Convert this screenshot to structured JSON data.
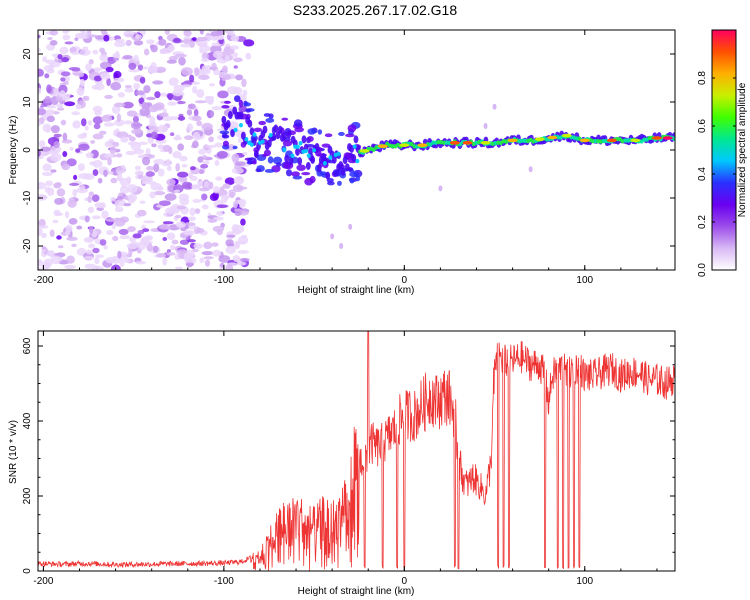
{
  "title": "S233.2025.267.17.02.G18",
  "chart_data": [
    {
      "type": "heatmap",
      "name": "spectrogram",
      "xlabel": "Height of straight line (km)",
      "ylabel": "Frequency (Hz)",
      "xlim": [
        -203,
        150
      ],
      "ylim": [
        -25,
        25
      ],
      "xticks": [
        -200,
        -100,
        0,
        100
      ],
      "yticks": [
        20,
        10,
        0,
        -10,
        -20
      ],
      "noise_region_x": [
        -203,
        -88
      ],
      "ridge": {
        "x": [
          -100,
          -90,
          -80,
          -70,
          -60,
          -50,
          -40,
          -30,
          -20,
          -10,
          0,
          10,
          20,
          30,
          40,
          50,
          60,
          70,
          80,
          90,
          100,
          110,
          120,
          130,
          140,
          150
        ],
        "f": [
          6,
          5,
          1,
          2,
          0,
          -1,
          -3,
          -1,
          0,
          1,
          1,
          1,
          1.5,
          1.5,
          1.5,
          1.5,
          2,
          2,
          2.5,
          3,
          2,
          2,
          2,
          2,
          2.5,
          2.5
        ]
      },
      "colorbar": {
        "label": "Normalized spectral amplitude",
        "range": [
          0,
          1
        ],
        "ticks": [
          "0.0",
          "0.2",
          "0.4",
          "0.6",
          "0.8"
        ],
        "tick_values": [
          0.0,
          0.2,
          0.4,
          0.6,
          0.8
        ],
        "colors": [
          "#ffffff",
          "#d9b8f5",
          "#9b4dea",
          "#6a00f0",
          "#2a30ff",
          "#00c8ff",
          "#00e890",
          "#40ff00",
          "#c8f000",
          "#ffb000",
          "#ff5000",
          "#ff0060"
        ]
      }
    },
    {
      "type": "line",
      "name": "snr",
      "xlabel": "Height of straight line (km)",
      "ylabel": "SNR (10 * v/v)",
      "xlim": [
        -203,
        150
      ],
      "ylim": [
        0,
        640
      ],
      "xticks": [
        -200,
        -100,
        0,
        100
      ],
      "yticks": [
        0,
        200,
        400,
        600
      ],
      "color": "#ee3333",
      "x": [
        -203,
        -190,
        -175,
        -160,
        -145,
        -130,
        -115,
        -100,
        -90,
        -85,
        -80,
        -75,
        -70,
        -65,
        -60,
        -55,
        -50,
        -45,
        -40,
        -35,
        -30,
        -27,
        -25,
        -22,
        -20,
        -18,
        -15,
        -12,
        -10,
        -7,
        -5,
        -3,
        0,
        3,
        5,
        8,
        10,
        13,
        15,
        18,
        20,
        23,
        25,
        28,
        30,
        33,
        35,
        38,
        40,
        43,
        45,
        48,
        50,
        52,
        55,
        58,
        60,
        65,
        70,
        75,
        78,
        80,
        82,
        85,
        88,
        90,
        92,
        95,
        97,
        100,
        105,
        110,
        115,
        120,
        125,
        130,
        135,
        140,
        145,
        150
      ],
      "y": [
        20,
        18,
        20,
        17,
        18,
        19,
        20,
        21,
        25,
        35,
        50,
        80,
        120,
        140,
        150,
        130,
        120,
        140,
        130,
        160,
        230,
        280,
        290,
        300,
        320,
        340,
        330,
        340,
        350,
        370,
        380,
        400,
        410,
        420,
        410,
        430,
        440,
        460,
        470,
        450,
        460,
        470,
        460,
        420,
        300,
        240,
        230,
        250,
        240,
        220,
        200,
        290,
        530,
        580,
        560,
        560,
        560,
        570,
        550,
        550,
        520,
        450,
        520,
        540,
        545,
        520,
        530,
        540,
        545,
        520,
        520,
        530,
        540,
        520,
        530,
        530,
        510,
        510,
        500,
        515
      ],
      "dropouts": [
        -22,
        -12,
        -4,
        0,
        28,
        30,
        52,
        55,
        58,
        78,
        85,
        88,
        91,
        94,
        97
      ]
    }
  ]
}
